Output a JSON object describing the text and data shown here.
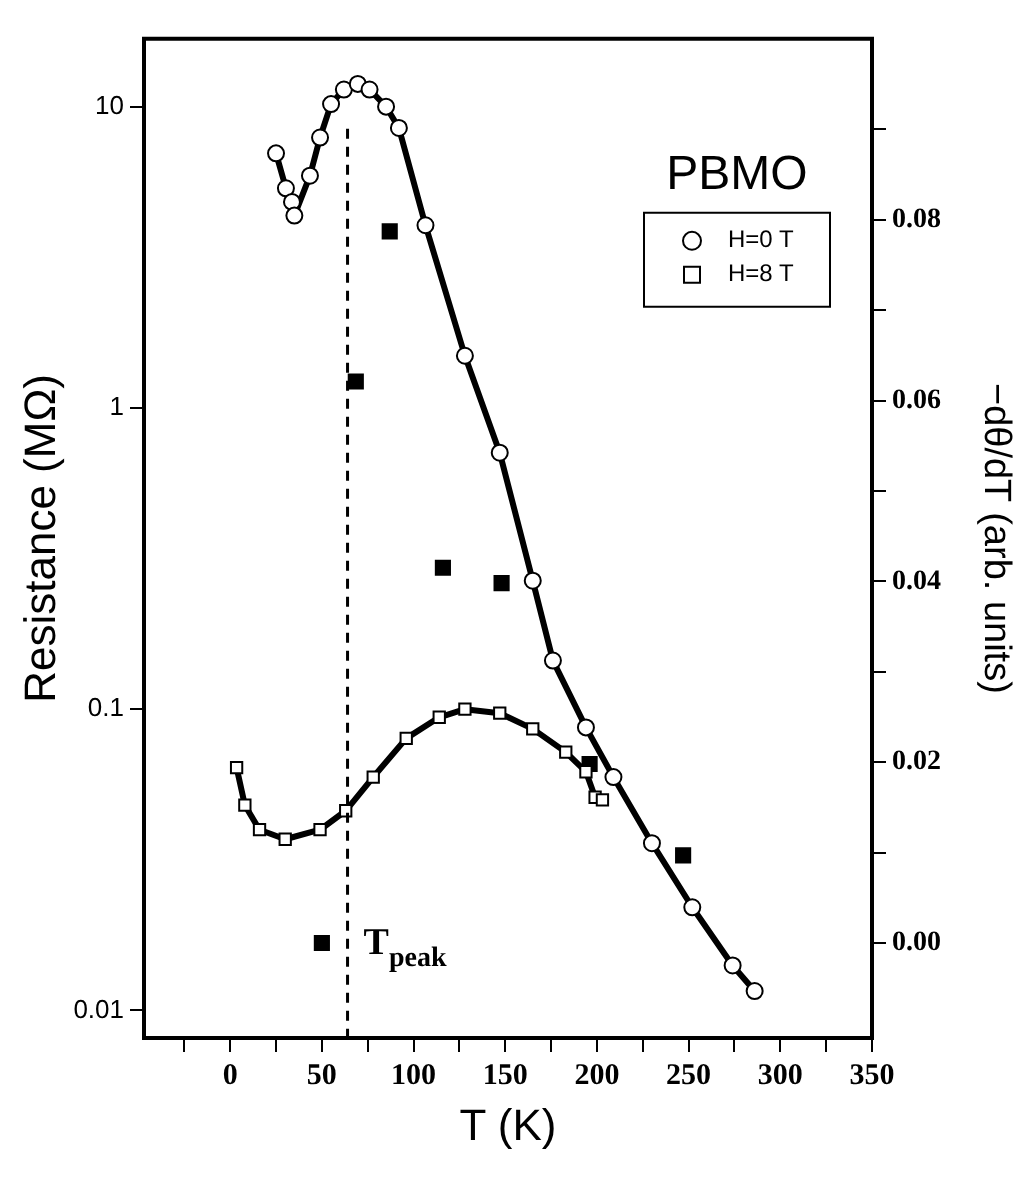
{
  "chart_data": {
    "type": "line",
    "xlabel": "T (K)",
    "ylabel": "Resistance (MΩ)",
    "y2label": "−dθ/dT (arb. units)",
    "legend_title": "PBMO",
    "legend": "top right",
    "log": "y",
    "xlim": [
      -47,
      350
    ],
    "xticks": [
      {
        "value": -25,
        "label": null
      },
      0,
      {
        "value": 25,
        "label": null
      },
      50,
      {
        "value": 75,
        "label": null
      },
      100,
      {
        "value": 125,
        "label": null
      },
      150,
      {
        "value": 175,
        "label": null
      },
      200,
      {
        "value": 225,
        "label": null
      },
      250,
      {
        "value": 275,
        "label": null
      },
      300,
      {
        "value": 325,
        "label": null
      },
      350
    ],
    "ylim": [
      0.0081,
      16.8
    ],
    "yticks": [
      0.01,
      0.1,
      1,
      10
    ],
    "y2lim": [
      -0.0105,
      0.1
    ],
    "y2ticks": [
      {
        "value": 0,
        "label": "0.00"
      },
      {
        "value": 0.01,
        "label": null
      },
      0.02,
      {
        "value": 0.03,
        "label": null
      },
      0.04,
      {
        "value": 0.05,
        "label": null
      },
      0.06,
      {
        "value": 0.07,
        "label": null
      },
      0.08,
      {
        "value": 0.09,
        "label": null
      }
    ],
    "ref_lines": [
      {
        "axis": "x",
        "value": 64,
        "label": "T$_{peak}$",
        "line_style": "dashed",
        "color": "#000000"
      }
    ],
    "series": [
      {
        "name": "H=0 T",
        "color": "#000000",
        "marker": "circle",
        "x": [
          25,
          30.4,
          33.7,
          35,
          43.5,
          49,
          55,
          62,
          69.6,
          76,
          85,
          92,
          106.5,
          128,
          147,
          165,
          176,
          194,
          209,
          230,
          252,
          274,
          286
        ],
        "values": [
          7.0,
          5.36,
          4.83,
          4.35,
          5.9,
          7.9,
          10.2,
          11.4,
          11.9,
          11.4,
          10.0,
          8.5,
          4.04,
          1.49,
          0.71,
          0.267,
          0.145,
          0.087,
          0.0595,
          0.0359,
          0.022,
          0.0141,
          0.0116
        ]
      },
      {
        "name": "H=8 T",
        "color": "#000000",
        "marker": "square",
        "x": [
          3.5,
          8,
          16,
          30,
          49,
          63,
          78,
          96,
          114,
          128,
          147,
          165,
          183,
          194,
          199,
          203
        ],
        "values": [
          0.064,
          0.048,
          0.0398,
          0.037,
          0.0398,
          0.046,
          0.0595,
          0.08,
          0.094,
          0.1,
          0.097,
          0.086,
          0.072,
          0.062,
          0.051,
          0.05
        ]
      },
      {
        "type": "scatter",
        "axis": "y2",
        "color": "#000000",
        "marker": "square",
        "x": [
          50,
          68.5,
          87,
          116,
          148,
          196,
          247
        ],
        "values": [
          0.0,
          0.0621,
          0.0787,
          0.0415,
          0.0398,
          0.0198,
          0.0097
        ]
      }
    ]
  }
}
